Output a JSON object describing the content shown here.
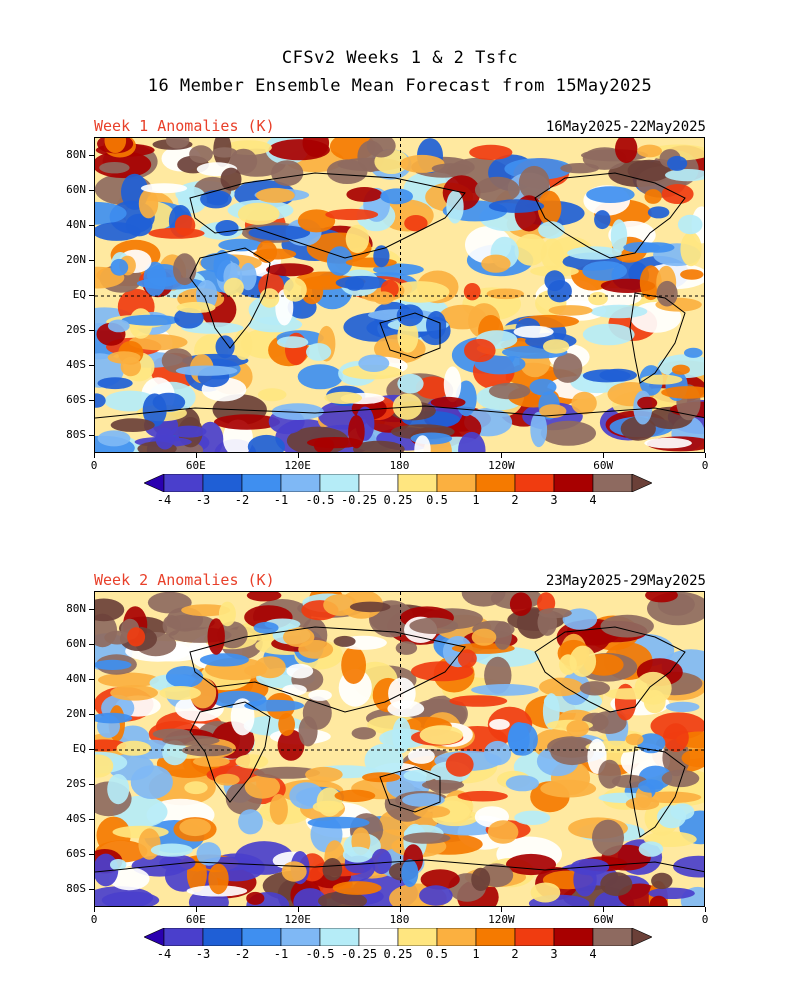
{
  "title_line1": "CFSv2 Weeks 1 & 2 Tsfc",
  "title_line2": "16 Member Ensemble Mean Forecast from 15May2025",
  "panels": [
    {
      "label": "Week 1 Anomalies (K)",
      "date_range": "16May2025-22May2025"
    },
    {
      "label": "Week 2 Anomalies (K)",
      "date_range": "23May2025-29May2025"
    }
  ],
  "lat_labels": [
    "80N",
    "60N",
    "40N",
    "20N",
    "EQ",
    "20S",
    "40S",
    "60S",
    "80S"
  ],
  "lon_labels": [
    "0",
    "60E",
    "120E",
    "180",
    "120W",
    "60W",
    "0"
  ],
  "colorbar": {
    "labels": [
      "-4",
      "-3",
      "-2",
      "-1",
      "-0.5",
      "-0.25",
      "0.25",
      "0.5",
      "1",
      "2",
      "3",
      "4"
    ],
    "colors": [
      "#2a00b0",
      "#4a3fcc",
      "#1f5fd6",
      "#3f8ff0",
      "#7fb8f5",
      "#b5ecf7",
      "#ffffff",
      "#ffe680",
      "#fbb040",
      "#f57a00",
      "#f03c10",
      "#a80000",
      "#8e6a60",
      "#6b4038"
    ]
  }
}
